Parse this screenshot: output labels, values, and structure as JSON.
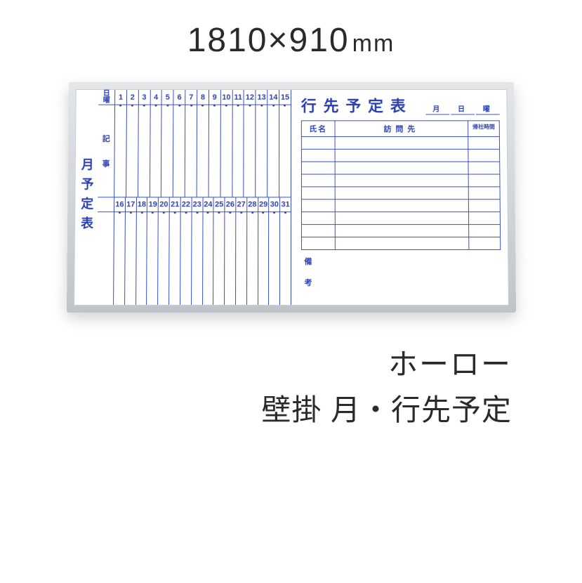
{
  "dimensions": {
    "width": "1810",
    "height": "910",
    "unit": "mm"
  },
  "colors": {
    "ink": "#2a3fb0",
    "frame_light": "#e3e6e8",
    "frame_dark": "#bfc4c8",
    "text": "#2a2a2a"
  },
  "left": {
    "title": "月予定表",
    "row1_head": [
      "日",
      "曜"
    ],
    "row1_days": [
      "1",
      "2",
      "3",
      "4",
      "5",
      "6",
      "7",
      "8",
      "9",
      "10",
      "11",
      "12",
      "13",
      "14",
      "15"
    ],
    "row2_head": [
      "記",
      "事"
    ],
    "row2_days": [
      "16",
      "17",
      "18",
      "19",
      "20",
      "21",
      "22",
      "23",
      "24",
      "25",
      "26",
      "27",
      "28",
      "29",
      "30",
      "31"
    ]
  },
  "right": {
    "title": "行先予定表",
    "date_fields": [
      "月",
      "日",
      "曜"
    ],
    "columns": {
      "name": "氏名",
      "destination": "訪問先",
      "return_time": "帰社時間"
    },
    "row_count": 9,
    "notes_label": [
      "備",
      "考"
    ]
  },
  "captions": {
    "line1": "ホーロー",
    "line2": "壁掛 月・行先予定"
  }
}
